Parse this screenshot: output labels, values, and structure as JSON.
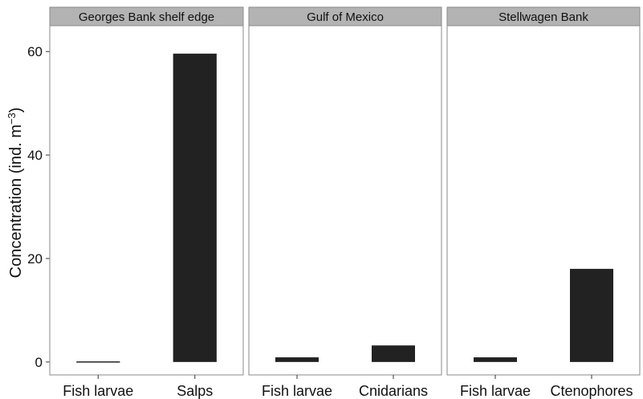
{
  "chart_data": {
    "type": "bar",
    "ylabel": "Concentration (ind. m",
    "ylabel_superscript": "−3",
    "ylabel_close": ")",
    "xlabel": "",
    "ylim": [
      -2.5,
      65
    ],
    "yticks": [
      "0",
      "20",
      "40",
      "60"
    ],
    "bar_color": "#222222",
    "strip_color": "#b3b3b3",
    "panels": [
      {
        "title": "Georges Bank shelf edge",
        "categories": [
          "Fish larvae",
          "Salps"
        ],
        "values": [
          0.1,
          59.6
        ]
      },
      {
        "title": "Gulf of Mexico",
        "categories": [
          "Fish larvae",
          "Cnidarians"
        ],
        "values": [
          0.9,
          3.2
        ]
      },
      {
        "title": "Stellwagen Bank",
        "categories": [
          "Fish larvae",
          "Ctenophores"
        ],
        "values": [
          0.9,
          18.0
        ]
      }
    ]
  }
}
